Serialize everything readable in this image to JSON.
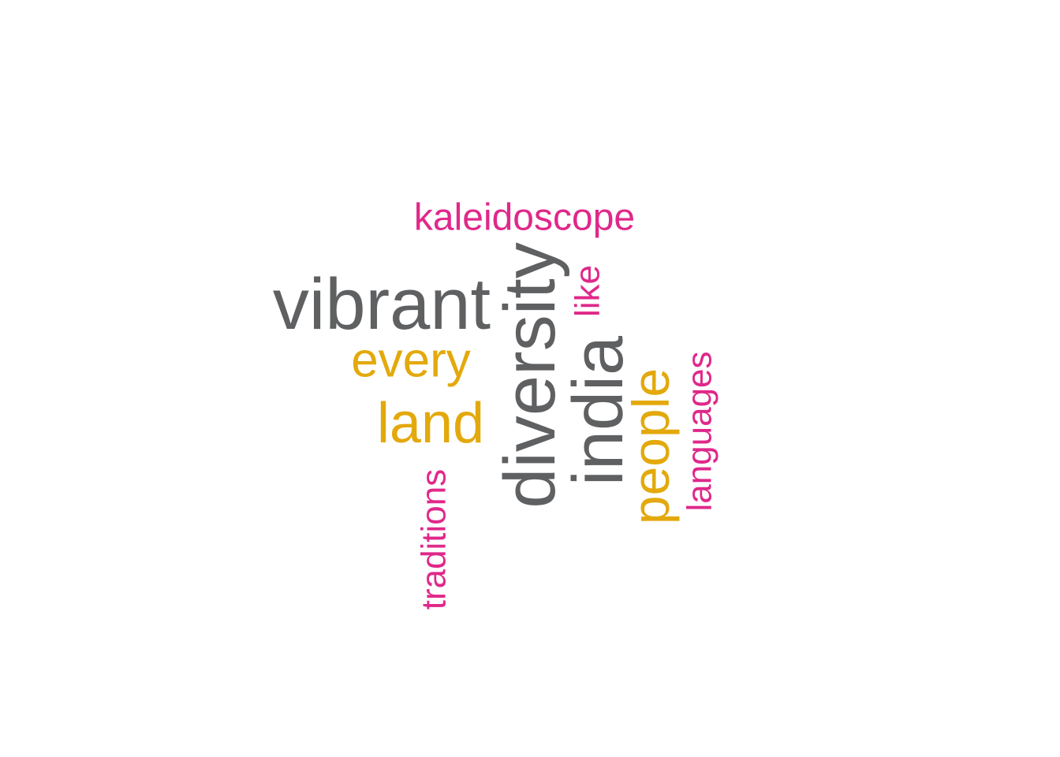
{
  "colors": {
    "gray": "#5f6062",
    "gold": "#e3a90c",
    "pink": "#e0288a"
  },
  "words": [
    {
      "id": "vibrant",
      "text": "vibrant",
      "color": "gray",
      "orientation": "horizontal"
    },
    {
      "id": "diversity",
      "text": "diversity",
      "color": "gray",
      "orientation": "vertical"
    },
    {
      "id": "india",
      "text": "india",
      "color": "gray",
      "orientation": "vertical"
    },
    {
      "id": "every",
      "text": "every",
      "color": "gold",
      "orientation": "horizontal"
    },
    {
      "id": "land",
      "text": "land",
      "color": "gold",
      "orientation": "horizontal"
    },
    {
      "id": "people",
      "text": "people",
      "color": "gold",
      "orientation": "vertical"
    },
    {
      "id": "kaleidoscope",
      "text": "kaleidoscope",
      "color": "pink",
      "orientation": "horizontal"
    },
    {
      "id": "like",
      "text": "like",
      "color": "pink",
      "orientation": "vertical"
    },
    {
      "id": "languages",
      "text": "languages",
      "color": "pink",
      "orientation": "vertical"
    },
    {
      "id": "traditions",
      "text": "traditions",
      "color": "pink",
      "orientation": "vertical"
    }
  ]
}
